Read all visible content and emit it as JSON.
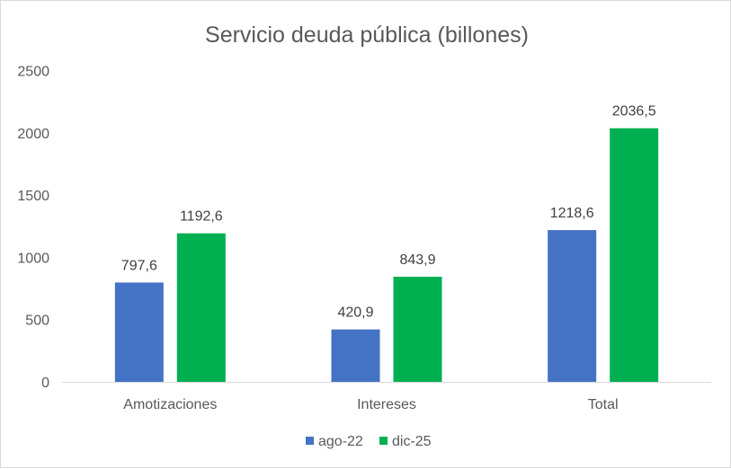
{
  "chart_data": {
    "type": "bar",
    "title": "Servicio deuda pública (billones)",
    "categories": [
      "Amotizaciones",
      "Intereses",
      "Total"
    ],
    "series": [
      {
        "name": "ago-22",
        "values": [
          797.6,
          420.9,
          1218.6
        ],
        "labels": [
          "797,6",
          "420,9",
          "1218,6"
        ],
        "color": "#4472C4"
      },
      {
        "name": "dic-25",
        "values": [
          1192.6,
          843.9,
          2036.5
        ],
        "labels": [
          "1192,6",
          "843,9",
          "2036,5"
        ],
        "color": "#00B050"
      }
    ],
    "yticks": [
      0,
      500,
      1000,
      1500,
      2000,
      2500
    ],
    "ylim": [
      0,
      2500
    ],
    "xlabel": "",
    "ylabel": "",
    "grid": false,
    "legend": "bottom-center",
    "axis_color": "#d9d9d9"
  }
}
